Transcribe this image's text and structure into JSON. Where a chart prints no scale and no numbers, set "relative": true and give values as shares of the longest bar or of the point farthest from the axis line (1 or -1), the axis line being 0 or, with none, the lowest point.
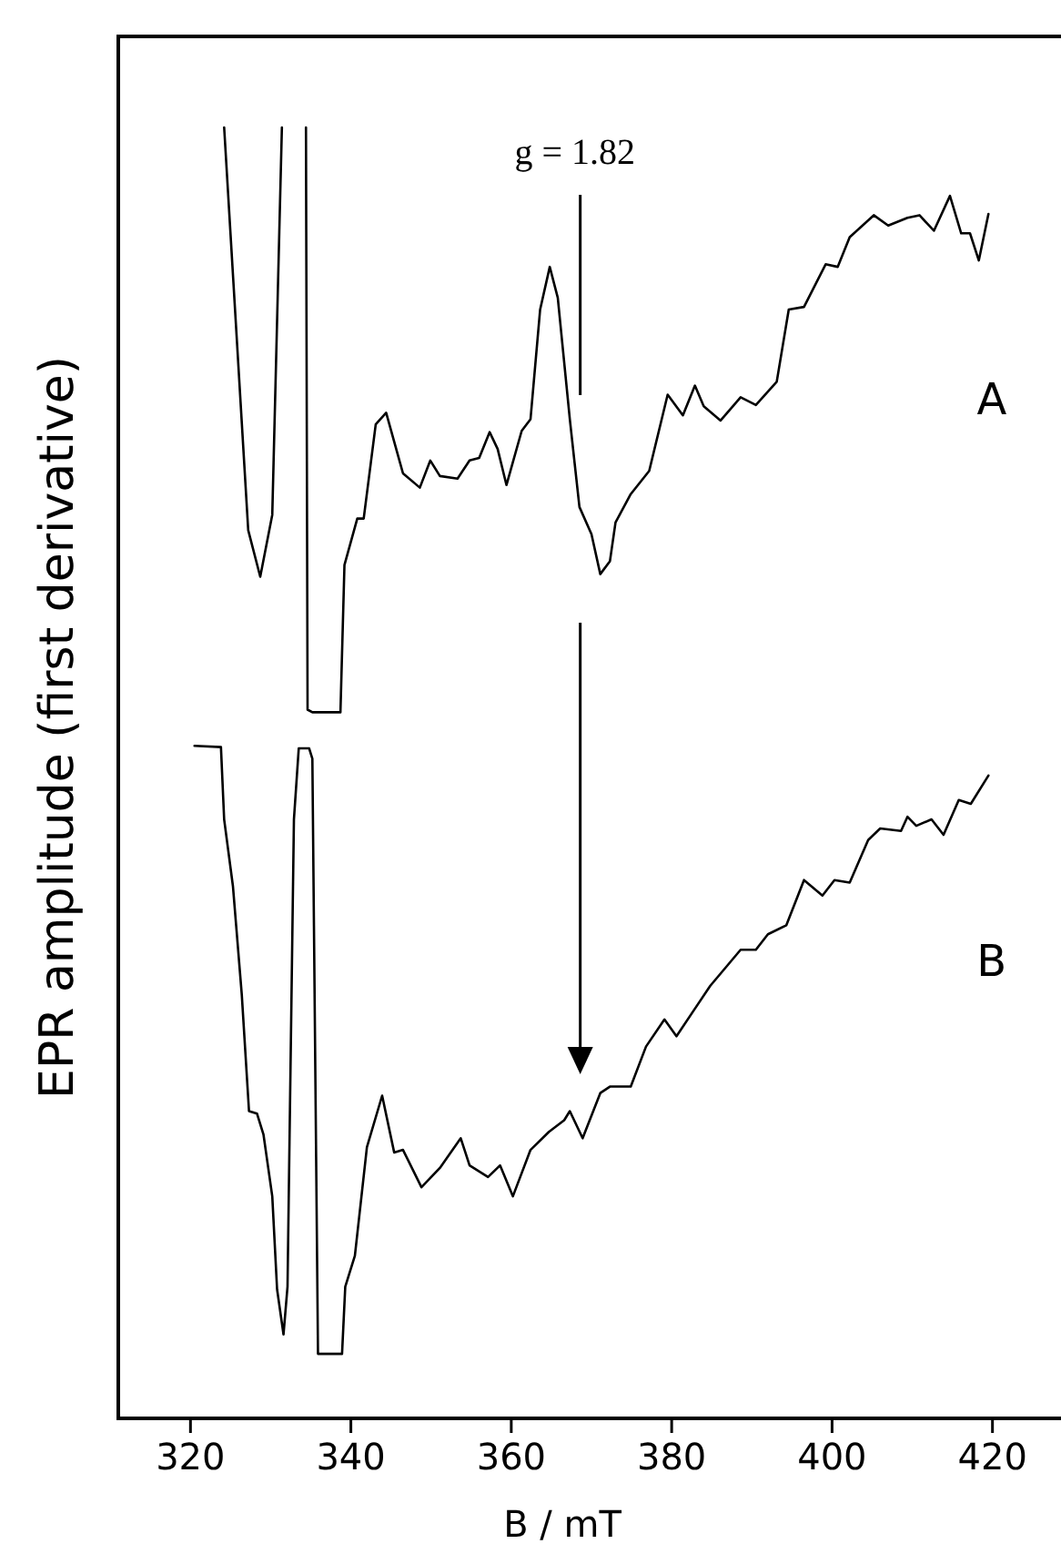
{
  "chart_data": {
    "type": "line",
    "relative": true,
    "xlabel": "B / mT",
    "ylabel": "EPR amplitude (first derivative)",
    "xlim": [
      311,
      429
    ],
    "xticks": [
      320,
      340,
      360,
      380,
      400,
      420
    ],
    "grid": false,
    "marker": "none",
    "line_style": "solid",
    "ref_lines": [
      {
        "axis": "x",
        "value": 368.6
      }
    ],
    "annotations": [
      "g = 1.82"
    ],
    "legend": false,
    "series": [
      {
        "name": "A",
        "color": "#000000",
        "x": [
          324.2,
          327.2,
          328.7,
          330.2,
          331.4,
          331.9,
          334.4,
          334.6,
          335.2,
          338.7,
          339.2,
          340.8,
          341.6,
          343.1,
          344.4,
          346.5,
          348.6,
          349.9,
          351.1,
          353.3,
          354.8,
          356.0,
          357.3,
          358.3,
          359.4,
          361.3,
          362.4,
          363.6,
          364.8,
          365.8,
          367.3,
          368.5,
          370.0,
          371.1,
          372.3,
          373.0,
          374.9,
          377.2,
          379.5,
          381.4,
          382.9,
          384.0,
          386.1,
          388.6,
          390.5,
          393.1,
          394.6,
          396.5,
          399.2,
          400.7,
          402.2,
          405.2,
          407.0,
          409.4,
          410.9,
          412.7,
          414.7,
          416.1,
          417.2,
          418.3,
          419.5
        ],
        "values": [
          1.0,
          0.688,
          0.652,
          0.7,
          1.0,
          null,
          1.0,
          0.549,
          0.547,
          0.547,
          0.661,
          0.697,
          0.697,
          0.77,
          0.779,
          0.732,
          0.721,
          0.742,
          0.73,
          0.728,
          0.742,
          0.744,
          0.764,
          0.751,
          0.723,
          0.765,
          0.774,
          0.859,
          0.892,
          0.868,
          0.774,
          0.706,
          0.685,
          0.654,
          0.664,
          0.694,
          0.716,
          0.734,
          0.793,
          0.777,
          0.8,
          0.784,
          0.773,
          0.791,
          0.785,
          0.803,
          0.859,
          0.861,
          0.894,
          0.892,
          0.915,
          0.932,
          0.924,
          0.93,
          0.932,
          0.92,
          0.947,
          0.918,
          0.918,
          0.897,
          0.933
        ]
      },
      {
        "name": "B",
        "color": "#000000",
        "x": [
          320.5,
          323.8,
          324.2,
          325.3,
          326.4,
          327.3,
          328.3,
          329.1,
          330.2,
          330.8,
          331.6,
          332.1,
          332.9,
          333.5,
          334.8,
          335.2,
          335.9,
          338.9,
          339.3,
          340.5,
          342.0,
          343.9,
          345.4,
          346.5,
          348.8,
          351.1,
          353.7,
          354.8,
          357.1,
          358.6,
          360.2,
          362.4,
          364.7,
          366.6,
          367.3,
          368.9,
          371.1,
          372.3,
          374.9,
          376.8,
          379.1,
          380.6,
          384.8,
          388.6,
          390.5,
          392.0,
          394.3,
          396.5,
          398.8,
          400.3,
          402.2,
          404.5,
          406.0,
          408.6,
          409.4,
          410.5,
          412.4,
          413.9,
          415.8,
          417.3,
          419.5
        ],
        "values": [
          0.521,
          0.52,
          0.464,
          0.412,
          0.328,
          0.238,
          0.236,
          0.22,
          0.172,
          0.1,
          0.065,
          0.102,
          0.464,
          0.519,
          0.519,
          0.511,
          0.05,
          0.05,
          0.102,
          0.126,
          0.21,
          0.25,
          0.206,
          0.208,
          0.179,
          0.194,
          0.217,
          0.196,
          0.187,
          0.196,
          0.172,
          0.208,
          0.222,
          0.231,
          0.238,
          0.217,
          0.252,
          0.257,
          0.257,
          0.288,
          0.309,
          0.296,
          0.335,
          0.363,
          0.363,
          0.375,
          0.382,
          0.417,
          0.405,
          0.417,
          0.415,
          0.448,
          0.457,
          0.455,
          0.466,
          0.459,
          0.464,
          0.452,
          0.479,
          0.476,
          0.498
        ]
      }
    ]
  }
}
